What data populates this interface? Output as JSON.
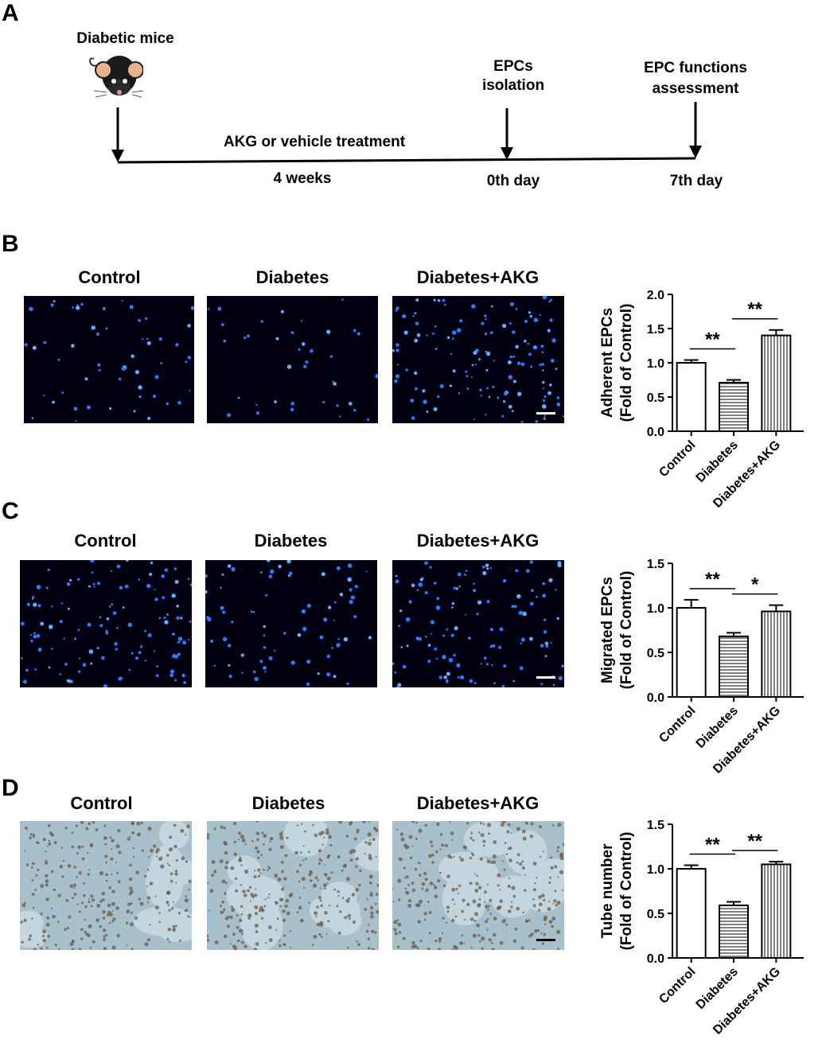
{
  "panel_a": {
    "letter": "A",
    "mouse_label": "Diabetic mice",
    "treatment_label": "AKG or vehicle treatment",
    "duration_label": "4 weeks",
    "epc_isolation": "EPCs isolation",
    "day0_label": "0th day",
    "epc_function": "EPC functions assessment",
    "day7_label": "7th day"
  },
  "panel_b": {
    "letter": "B",
    "image_titles": [
      "Control",
      "Diabetes",
      "Diabetes+AKG"
    ]
  },
  "panel_c": {
    "letter": "C",
    "image_titles": [
      "Control",
      "Diabetes",
      "Diabetes+AKG"
    ]
  },
  "panel_d": {
    "letter": "D",
    "image_titles": [
      "Control",
      "Diabetes",
      "Diabetes+AKG"
    ]
  },
  "colors": {
    "fluorescence_background": "#000010",
    "nuclei": "#2a7cff",
    "brightfield_background": "#a7c0cc",
    "cell_clusters": "#6e5a45"
  },
  "chart_data": [
    {
      "type": "bar",
      "panel": "B",
      "categories": [
        "Control",
        "Diabetes",
        "Diabetes+AKG"
      ],
      "values": [
        1.0,
        0.71,
        1.4
      ],
      "errors": [
        0.04,
        0.04,
        0.08
      ],
      "patterns": [
        "open",
        "horizontal-lines",
        "vertical-lines"
      ],
      "ylabel": "Adherent EPCs",
      "ylabel2": "(Fold of Control)",
      "ylim": [
        0,
        2.0
      ],
      "yticks": [
        "0.0",
        "0.5",
        "1.0",
        "1.5",
        "2.0"
      ],
      "significance": [
        {
          "from": 0,
          "to": 1,
          "label": "**"
        },
        {
          "from": 1,
          "to": 2,
          "label": "**"
        }
      ]
    },
    {
      "type": "bar",
      "panel": "C",
      "categories": [
        "Control",
        "Diabetes",
        "Diabetes+AKG"
      ],
      "values": [
        1.0,
        0.68,
        0.96
      ],
      "errors": [
        0.09,
        0.04,
        0.07
      ],
      "patterns": [
        "open",
        "horizontal-lines",
        "vertical-lines"
      ],
      "ylabel": "Migrated EPCs",
      "ylabel2": "(Fold of Control)",
      "ylim": [
        0,
        1.5
      ],
      "yticks": [
        "0.0",
        "0.5",
        "1.0",
        "1.5"
      ],
      "significance": [
        {
          "from": 0,
          "to": 1,
          "label": "**"
        },
        {
          "from": 1,
          "to": 2,
          "label": "*"
        }
      ]
    },
    {
      "type": "bar",
      "panel": "D",
      "categories": [
        "Control",
        "Diabetes",
        "Diabetes+AKG"
      ],
      "values": [
        1.0,
        0.59,
        1.05
      ],
      "errors": [
        0.04,
        0.04,
        0.03
      ],
      "patterns": [
        "open",
        "horizontal-lines",
        "vertical-lines"
      ],
      "ylabel": "Tube number",
      "ylabel2": "(Fold of Control)",
      "ylim": [
        0,
        1.5
      ],
      "yticks": [
        "0.0",
        "0.5",
        "1.0",
        "1.5"
      ],
      "significance": [
        {
          "from": 0,
          "to": 1,
          "label": "**"
        },
        {
          "from": 1,
          "to": 2,
          "label": "**"
        }
      ]
    }
  ]
}
